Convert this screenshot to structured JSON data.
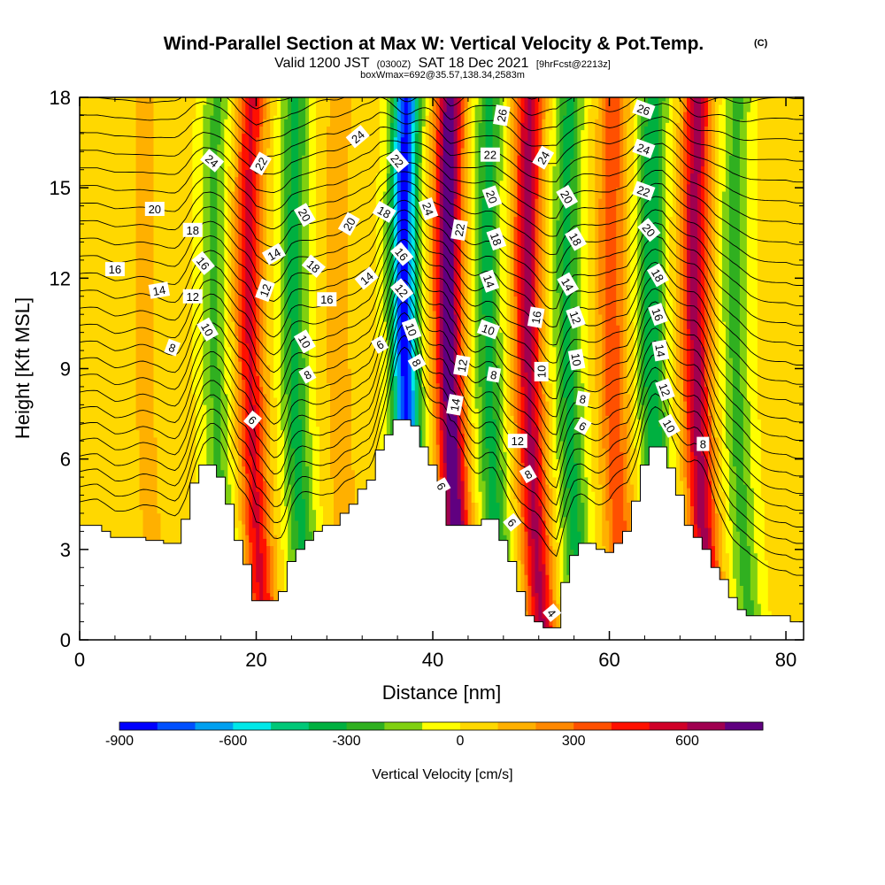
{
  "chart_data": {
    "type": "heatmap",
    "title": "Wind-Parallel Section at Max W: Vertical Velocity & Pot.Temp.",
    "title_mark": "(C)",
    "subtitle_parts": [
      "Valid 1200 JST",
      "(0300Z)",
      "SAT 18 Dec 2021",
      "[9hrFcst@2213z]"
    ],
    "subtitle2": "boxWmax=692@35.57,138.34,2583m",
    "xlabel": "Distance [nm]",
    "ylabel": "Height [Kft MSL]",
    "xlim": [
      0,
      82
    ],
    "ylim": [
      0,
      18
    ],
    "x_ticks": [
      0,
      20,
      40,
      60,
      80
    ],
    "y_ticks": [
      0,
      3,
      6,
      9,
      12,
      15,
      18
    ],
    "colorbar": {
      "label": "Vertical Velocity [cm/s]",
      "range": [
        -900,
        800
      ],
      "step": 100,
      "tick_values": [
        -900,
        -600,
        -300,
        0,
        300,
        600
      ],
      "tick_labels": [
        "-900",
        "-600",
        "-300",
        "0",
        "300",
        "600"
      ],
      "colors": [
        "#0000ff",
        "#0050ff",
        "#00a0f0",
        "#00e8e8",
        "#00c878",
        "#00b040",
        "#30b020",
        "#80d010",
        "#ffff00",
        "#ffd800",
        "#ffb000",
        "#ff8800",
        "#ff5000",
        "#ff1000",
        "#d00028",
        "#a00050",
        "#600080"
      ]
    },
    "velocity_field": {
      "background_cm_s": 20,
      "waves": [
        {
          "x_nm": 3,
          "cm_s": 60
        },
        {
          "x_nm": 9,
          "cm_s": 120
        },
        {
          "x_nm": 17,
          "cm_s": -240
        },
        {
          "x_nm": 21,
          "cm_s": 500
        },
        {
          "x_nm": 26,
          "cm_s": -350
        },
        {
          "x_nm": 31,
          "cm_s": 150
        },
        {
          "x_nm": 38.5,
          "cm_s": -850
        },
        {
          "x_nm": 43.5,
          "cm_s": 780
        },
        {
          "x_nm": 48,
          "cm_s": -350
        },
        {
          "x_nm": 52.5,
          "cm_s": 600
        },
        {
          "x_nm": 57,
          "cm_s": -350
        },
        {
          "x_nm": 62,
          "cm_s": 350
        },
        {
          "x_nm": 66.5,
          "cm_s": -400
        },
        {
          "x_nm": 71.5,
          "cm_s": 620
        },
        {
          "x_nm": 76,
          "cm_s": -250
        }
      ]
    },
    "terrain_kft": {
      "x": [
        0,
        1,
        2,
        3,
        4,
        5,
        6,
        7,
        8,
        9,
        10,
        11,
        12,
        13,
        14,
        15,
        16,
        17,
        18,
        19,
        20,
        21,
        22,
        23,
        24,
        25,
        26,
        27,
        28,
        29,
        30,
        31,
        32,
        33,
        34,
        35,
        36,
        37,
        38,
        39,
        40,
        41,
        42,
        43,
        44,
        45,
        46,
        47,
        48,
        49,
        50,
        51,
        52,
        53,
        54,
        55,
        56,
        57,
        58,
        59,
        60,
        61,
        62,
        63,
        64,
        65,
        66,
        67,
        68,
        69,
        70,
        71,
        72,
        73,
        74,
        75,
        76,
        77,
        78,
        79,
        80,
        81,
        82
      ],
      "h": [
        3.8,
        3.8,
        3.8,
        3.6,
        3.4,
        3.4,
        3.4,
        3.4,
        3.3,
        3.3,
        3.2,
        3.2,
        4.0,
        5.2,
        5.8,
        5.8,
        5.4,
        4.5,
        3.3,
        2.5,
        1.3,
        1.3,
        1.3,
        1.6,
        2.6,
        3.0,
        3.3,
        3.6,
        3.8,
        3.8,
        4.2,
        4.5,
        5.0,
        5.3,
        6.3,
        6.8,
        7.3,
        7.3,
        7.1,
        6.4,
        5.8,
        5.0,
        3.8,
        3.8,
        3.8,
        3.8,
        4.0,
        4.0,
        3.3,
        2.6,
        1.6,
        0.8,
        0.6,
        0.4,
        0.4,
        1.9,
        2.8,
        3.2,
        3.2,
        3.0,
        2.9,
        3.2,
        3.6,
        4.6,
        5.8,
        6.4,
        6.4,
        5.7,
        4.8,
        3.8,
        3.4,
        3.0,
        2.4,
        2.0,
        1.4,
        1.0,
        0.8,
        0.8,
        0.8,
        0.8,
        0.8,
        0.6,
        0.6
      ]
    },
    "theta_isentropes": {
      "levels": [
        4,
        6,
        8,
        10,
        12,
        14,
        16,
        18,
        20,
        22,
        24,
        26
      ],
      "labels": [
        {
          "text": "16",
          "x": 4,
          "y": 12.3,
          "rot": 0
        },
        {
          "text": "20",
          "x": 8.5,
          "y": 14.3,
          "rot": 0
        },
        {
          "text": "14",
          "x": 9,
          "y": 11.6,
          "rot": -10
        },
        {
          "text": "8",
          "x": 10.5,
          "y": 9.7,
          "rot": 20
        },
        {
          "text": "18",
          "x": 12.8,
          "y": 13.6,
          "rot": 0
        },
        {
          "text": "12",
          "x": 12.8,
          "y": 11.4,
          "rot": 0
        },
        {
          "text": "24",
          "x": 15,
          "y": 15.9,
          "rot": 40
        },
        {
          "text": "16",
          "x": 14,
          "y": 12.5,
          "rot": 50
        },
        {
          "text": "10",
          "x": 14.5,
          "y": 10.3,
          "rot": 60
        },
        {
          "text": "6",
          "x": 19.6,
          "y": 7.3,
          "rot": 40
        },
        {
          "text": "22",
          "x": 20.5,
          "y": 15.8,
          "rot": -60
        },
        {
          "text": "14",
          "x": 22,
          "y": 12.8,
          "rot": -30
        },
        {
          "text": "12",
          "x": 21,
          "y": 11.6,
          "rot": -70
        },
        {
          "text": "20",
          "x": 25.5,
          "y": 14.1,
          "rot": 60
        },
        {
          "text": "18",
          "x": 26.5,
          "y": 12.4,
          "rot": 40
        },
        {
          "text": "10",
          "x": 25.5,
          "y": 9.9,
          "rot": 60
        },
        {
          "text": "8",
          "x": 25.8,
          "y": 8.8,
          "rot": -30
        },
        {
          "text": "16",
          "x": 28,
          "y": 11.3,
          "rot": 0
        },
        {
          "text": "20",
          "x": 30.5,
          "y": 13.8,
          "rot": -60
        },
        {
          "text": "24",
          "x": 31.5,
          "y": 16.7,
          "rot": -40
        },
        {
          "text": "14",
          "x": 32.5,
          "y": 12.0,
          "rot": -40
        },
        {
          "text": "18",
          "x": 34.5,
          "y": 14.2,
          "rot": 30
        },
        {
          "text": "6",
          "x": 34,
          "y": 9.8,
          "rot": -30
        },
        {
          "text": "22",
          "x": 36,
          "y": 15.9,
          "rot": 50
        },
        {
          "text": "16",
          "x": 36.5,
          "y": 12.8,
          "rot": 50
        },
        {
          "text": "12",
          "x": 36.5,
          "y": 11.6,
          "rot": 50
        },
        {
          "text": "10",
          "x": 37.6,
          "y": 10.3,
          "rot": 70
        },
        {
          "text": "24",
          "x": 39.5,
          "y": 14.3,
          "rot": 70
        },
        {
          "text": "8",
          "x": 38.2,
          "y": 9.2,
          "rot": 60
        },
        {
          "text": "14",
          "x": 42.5,
          "y": 7.8,
          "rot": -80
        },
        {
          "text": "6",
          "x": 41,
          "y": 5.1,
          "rot": 60
        },
        {
          "text": "22",
          "x": 43,
          "y": 13.6,
          "rot": -80
        },
        {
          "text": "12",
          "x": 43.3,
          "y": 9.1,
          "rot": -80
        },
        {
          "text": "26",
          "x": 47.8,
          "y": 17.4,
          "rot": -80
        },
        {
          "text": "22",
          "x": 46.5,
          "y": 16.1,
          "rot": 0
        },
        {
          "text": "20",
          "x": 46.7,
          "y": 14.7,
          "rot": 70
        },
        {
          "text": "18",
          "x": 47.2,
          "y": 13.3,
          "rot": 70
        },
        {
          "text": "14",
          "x": 46.4,
          "y": 11.9,
          "rot": 70
        },
        {
          "text": "10",
          "x": 46.3,
          "y": 10.3,
          "rot": 20
        },
        {
          "text": "8",
          "x": 46.9,
          "y": 8.8,
          "rot": 10
        },
        {
          "text": "12",
          "x": 49.6,
          "y": 6.6,
          "rot": 0
        },
        {
          "text": "8",
          "x": 50.8,
          "y": 5.5,
          "rot": -30
        },
        {
          "text": "6",
          "x": 49,
          "y": 3.9,
          "rot": 50
        },
        {
          "text": "24",
          "x": 52.5,
          "y": 16.0,
          "rot": -60
        },
        {
          "text": "16",
          "x": 51.7,
          "y": 10.7,
          "rot": -80
        },
        {
          "text": "10",
          "x": 52.3,
          "y": 8.9,
          "rot": -90
        },
        {
          "text": "4",
          "x": 53.5,
          "y": 0.9,
          "rot": 50
        },
        {
          "text": "20",
          "x": 55.2,
          "y": 14.7,
          "rot": 60
        },
        {
          "text": "18",
          "x": 56.2,
          "y": 13.3,
          "rot": 60
        },
        {
          "text": "14",
          "x": 55.3,
          "y": 11.8,
          "rot": 60
        },
        {
          "text": "12",
          "x": 56.2,
          "y": 10.7,
          "rot": 70
        },
        {
          "text": "10",
          "x": 56.3,
          "y": 9.3,
          "rot": 80
        },
        {
          "text": "8",
          "x": 57,
          "y": 8.0,
          "rot": 10
        },
        {
          "text": "6",
          "x": 57,
          "y": 7.1,
          "rot": 30
        },
        {
          "text": "26",
          "x": 63.9,
          "y": 17.6,
          "rot": 20
        },
        {
          "text": "24",
          "x": 63.9,
          "y": 16.3,
          "rot": 20
        },
        {
          "text": "22",
          "x": 63.9,
          "y": 14.9,
          "rot": 20
        },
        {
          "text": "20",
          "x": 64.5,
          "y": 13.6,
          "rot": 50
        },
        {
          "text": "18",
          "x": 65.5,
          "y": 12.1,
          "rot": 60
        },
        {
          "text": "16",
          "x": 65.5,
          "y": 10.8,
          "rot": 70
        },
        {
          "text": "14",
          "x": 65.8,
          "y": 9.6,
          "rot": 80
        },
        {
          "text": "12",
          "x": 66.3,
          "y": 8.3,
          "rot": 70
        },
        {
          "text": "10",
          "x": 66.8,
          "y": 7.1,
          "rot": 60
        },
        {
          "text": "8",
          "x": 70.6,
          "y": 6.5,
          "rot": 0
        }
      ]
    }
  }
}
